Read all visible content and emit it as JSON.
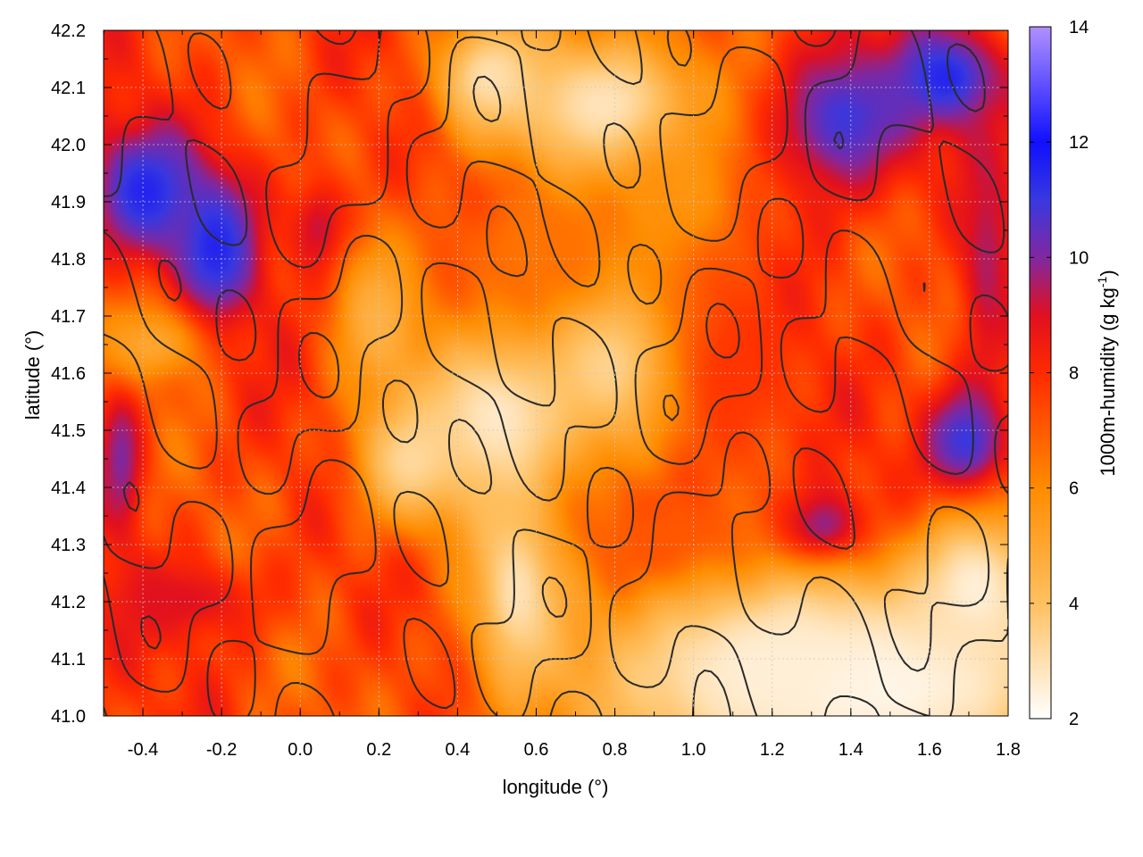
{
  "chart_data": {
    "type": "heatmap",
    "title": "",
    "xlabel": "longitude (°)",
    "ylabel": "latitude (°)",
    "xlim": [
      -0.5,
      1.8
    ],
    "ylim": [
      41.0,
      42.2
    ],
    "xticks": [
      "-0.4",
      "-0.2",
      "0.0",
      "0.2",
      "0.4",
      "0.6",
      "0.8",
      "1.0",
      "1.2",
      "1.4",
      "1.6",
      "1.8"
    ],
    "yticks": [
      "41.0",
      "41.1",
      "41.2",
      "41.3",
      "41.4",
      "41.5",
      "41.6",
      "41.7",
      "41.8",
      "41.9",
      "42.0",
      "42.1",
      "42.2"
    ],
    "grid": true,
    "overlay": "terrain elevation contour lines (black)",
    "colorbar": {
      "label": "1000m-humidity (g kg-1)",
      "label_main": "1000m-humidity (g kg",
      "label_sup": "-1",
      "label_end": ")",
      "range": [
        2,
        14
      ],
      "ticks": [
        "2",
        "4",
        "6",
        "8",
        "10",
        "12",
        "14"
      ],
      "colormap": [
        [
          2,
          "#ffffff"
        ],
        [
          4,
          "#ffc060"
        ],
        [
          6,
          "#ff8c00"
        ],
        [
          7,
          "#ff5a00"
        ],
        [
          8,
          "#ff2a00"
        ],
        [
          9,
          "#e01020"
        ],
        [
          10,
          "#8028a0"
        ],
        [
          11,
          "#3838e0"
        ],
        [
          12,
          "#1010ff"
        ],
        [
          14,
          "#b090ff"
        ]
      ]
    },
    "fields": {
      "background": 7.5,
      "features": [
        {
          "lon": -0.4,
          "lat": 41.92,
          "sx": 0.1,
          "sy": 0.08,
          "val": 11.5
        },
        {
          "lon": -0.22,
          "lat": 41.82,
          "sx": 0.08,
          "sy": 0.1,
          "val": 11.5
        },
        {
          "lon": 0.05,
          "lat": 41.85,
          "sx": 0.06,
          "sy": 0.07,
          "val": 9.5
        },
        {
          "lon": -0.46,
          "lat": 41.45,
          "sx": 0.04,
          "sy": 0.1,
          "val": 10.0
        },
        {
          "lon": -0.3,
          "lat": 41.2,
          "sx": 0.15,
          "sy": 0.05,
          "val": 9.0
        },
        {
          "lon": 1.38,
          "lat": 42.05,
          "sx": 0.14,
          "sy": 0.1,
          "val": 11.0
        },
        {
          "lon": 1.65,
          "lat": 42.12,
          "sx": 0.1,
          "sy": 0.06,
          "val": 11.5
        },
        {
          "lon": 1.7,
          "lat": 41.47,
          "sx": 0.08,
          "sy": 0.08,
          "val": 11.5
        },
        {
          "lon": 1.33,
          "lat": 41.32,
          "sx": 0.08,
          "sy": 0.05,
          "val": 11.5
        },
        {
          "lon": 1.75,
          "lat": 41.8,
          "sx": 0.05,
          "sy": 0.15,
          "val": 9.5
        },
        {
          "lon": 0.78,
          "lat": 42.07,
          "sx": 0.2,
          "sy": 0.1,
          "val": 2.8
        },
        {
          "lon": 0.48,
          "lat": 42.12,
          "sx": 0.1,
          "sy": 0.07,
          "val": 3.0
        },
        {
          "lon": 0.5,
          "lat": 41.52,
          "sx": 0.16,
          "sy": 0.12,
          "val": 2.6
        },
        {
          "lon": 0.8,
          "lat": 41.62,
          "sx": 0.15,
          "sy": 0.12,
          "val": 3.2
        },
        {
          "lon": 0.28,
          "lat": 41.45,
          "sx": 0.1,
          "sy": 0.08,
          "val": 3.2
        },
        {
          "lon": 0.55,
          "lat": 41.22,
          "sx": 0.08,
          "sy": 0.12,
          "val": 3.0
        },
        {
          "lon": 0.2,
          "lat": 41.7,
          "sx": 0.08,
          "sy": 0.1,
          "val": 4.5
        },
        {
          "lon": -0.38,
          "lat": 41.65,
          "sx": 0.1,
          "sy": 0.05,
          "val": 5.0
        },
        {
          "lon": 1.45,
          "lat": 41.05,
          "sx": 0.5,
          "sy": 0.14,
          "val": 2.1
        },
        {
          "lon": 1.2,
          "lat": 41.08,
          "sx": 0.25,
          "sy": 0.1,
          "val": 2.5
        },
        {
          "lon": 1.72,
          "lat": 41.22,
          "sx": 0.12,
          "sy": 0.1,
          "val": 2.5
        },
        {
          "lon": 0.95,
          "lat": 41.32,
          "sx": 0.14,
          "sy": 0.05,
          "val": 7.0
        },
        {
          "lon": 0.6,
          "lat": 41.82,
          "sx": 0.2,
          "sy": 0.08,
          "val": 6.5
        },
        {
          "lon": 1.0,
          "lat": 41.9,
          "sx": 0.1,
          "sy": 0.1,
          "val": 5.5
        },
        {
          "lon": 1.1,
          "lat": 41.6,
          "sx": 0.12,
          "sy": 0.15,
          "val": 7.8
        }
      ],
      "contour_levels": [
        4,
        6,
        8
      ]
    }
  }
}
